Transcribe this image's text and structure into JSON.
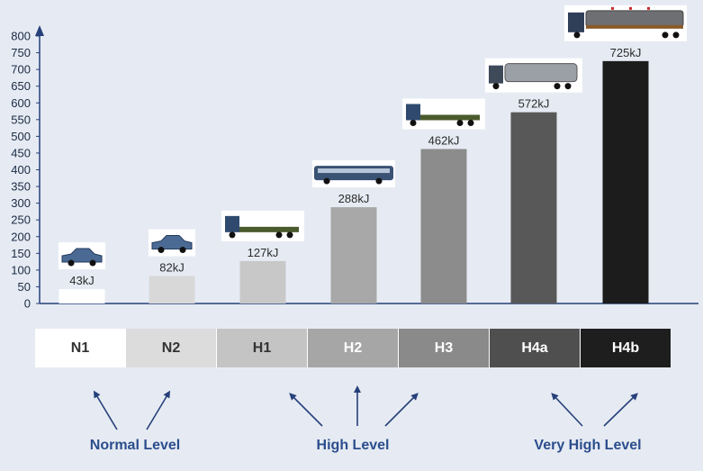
{
  "chart_data": {
    "type": "bar",
    "categories": [
      "N1",
      "N2",
      "H1",
      "H2",
      "H3",
      "H4a",
      "H4b"
    ],
    "values": [
      43,
      82,
      127,
      288,
      462,
      572,
      725
    ],
    "value_labels": [
      "43kJ",
      "82kJ",
      "127kJ",
      "288kJ",
      "462kJ",
      "572kJ",
      "725kJ"
    ],
    "yticks": [
      0,
      50,
      100,
      150,
      200,
      250,
      300,
      350,
      400,
      450,
      500,
      550,
      600,
      650,
      700,
      750,
      800
    ],
    "ylim": [
      0,
      800
    ],
    "title": "",
    "xlabel": "",
    "ylabel": "",
    "bar_colors": [
      "#ffffff",
      "#d8d8d8",
      "#c8c8c8",
      "#a8a8a8",
      "#8c8c8c",
      "#585858",
      "#1c1c1c"
    ],
    "vehicle_icons": [
      "car-icon",
      "car-icon",
      "flatbed-truck-icon",
      "bus-icon",
      "flatbed-truck-icon",
      "tanker-truck-icon",
      "tanker-trailer-truck-icon"
    ]
  },
  "level_boxes": [
    {
      "label": "N1",
      "bg": "#ffffff",
      "fg": "#333333"
    },
    {
      "label": "N2",
      "bg": "#dcdcdc",
      "fg": "#333333"
    },
    {
      "label": "H1",
      "bg": "#c4c4c4",
      "fg": "#333333"
    },
    {
      "label": "H2",
      "bg": "#a6a6a6",
      "fg": "#ffffff"
    },
    {
      "label": "H3",
      "bg": "#8a8a8a",
      "fg": "#ffffff"
    },
    {
      "label": "H4a",
      "bg": "#4f4f4f",
      "fg": "#ffffff"
    },
    {
      "label": "H4b",
      "bg": "#1e1e1e",
      "fg": "#ffffff"
    }
  ],
  "groups": {
    "normal": "Normal Level",
    "high": "High Level",
    "very_high": "Very High Level"
  },
  "colors": {
    "background": "#e6ebf3",
    "axis": "#26407a",
    "arrow": "#26407a",
    "group_text": "#2b4d8c"
  }
}
